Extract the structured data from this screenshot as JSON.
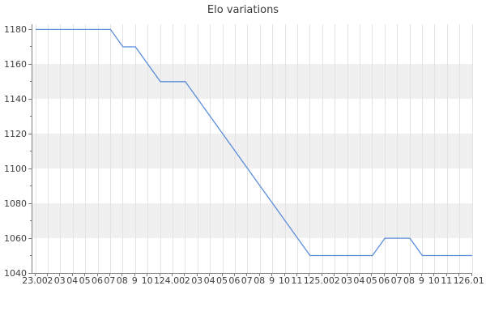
{
  "title": "Elo variations",
  "chart_data": {
    "type": "line",
    "title": "Elo variations",
    "x_tick_labels": [
      "23.00",
      "02",
      "03",
      "04",
      "05",
      "06",
      "07",
      "08",
      "9",
      "10",
      "11",
      "24.00",
      "02",
      "03",
      "04",
      "05",
      "06",
      "07",
      "08",
      "9",
      "10",
      "11",
      "12",
      "25.00",
      "02",
      "03",
      "04",
      "05",
      "06",
      "07",
      "08",
      "9",
      "10",
      "11",
      "12",
      "26.01"
    ],
    "y_ticks": [
      1040,
      1060,
      1080,
      1100,
      1120,
      1140,
      1160,
      1180
    ],
    "y_minor_ticks": [
      1050,
      1070,
      1090,
      1110,
      1130,
      1150,
      1170
    ],
    "ylim": [
      1040,
      1183
    ],
    "series": [
      {
        "name": "Elo",
        "values": [
          1180,
          1180,
          1180,
          1180,
          1180,
          1180,
          1180,
          1170,
          1170,
          1160,
          1150,
          1150,
          1150,
          1140,
          1130,
          1120,
          1110,
          1100,
          1090,
          1080,
          1070,
          1060,
          1050,
          1050,
          1050,
          1050,
          1050,
          1050,
          1060,
          1060,
          1060,
          1050,
          1050,
          1050,
          1050,
          1050
        ]
      }
    ],
    "shaded_bands": [
      [
        1160,
        1140
      ],
      [
        1120,
        1100
      ],
      [
        1080,
        1060
      ]
    ],
    "grid": "vertical-on",
    "legend": "none",
    "colors": {
      "line": "#5b8dd9",
      "band": "#f0f0f0",
      "grid": "#e3e3e3",
      "spine": "#7f7f7f",
      "tick_text": "#404040",
      "title_text": "#3a3a3a"
    }
  }
}
